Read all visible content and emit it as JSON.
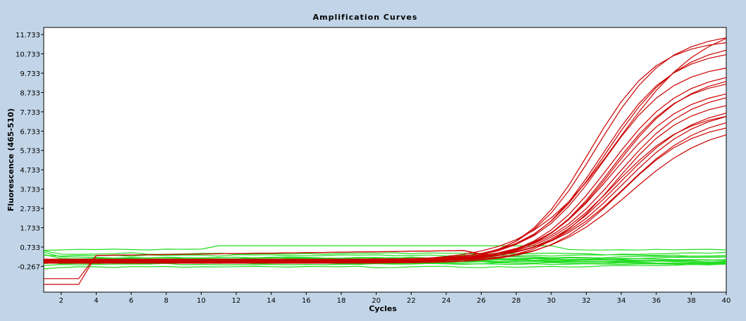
{
  "chart_data": {
    "type": "line",
    "title": "Amplification Curves",
    "xlabel": "Cycles",
    "ylabel": "Fluorescence (465-510)",
    "xlim": [
      1,
      40
    ],
    "ylim": [
      -1.6,
      12.1
    ],
    "x_ticks": [
      2,
      4,
      6,
      8,
      10,
      12,
      14,
      16,
      18,
      20,
      22,
      24,
      26,
      28,
      30,
      32,
      34,
      36,
      38,
      40
    ],
    "y_ticks": [
      -0.267,
      0.733,
      1.733,
      2.733,
      3.733,
      4.733,
      5.733,
      6.733,
      7.733,
      8.733,
      9.733,
      10.733,
      11.733
    ],
    "y_tick_labels": [
      "-0.267",
      "0.733",
      "1.733",
      "2.733",
      "3.733",
      "4.733",
      "5.733",
      "6.733",
      "7.733",
      "8.733",
      "9.733",
      "10.733",
      "11.733"
    ],
    "grid": false,
    "colors": {
      "positive": "#cc0000",
      "negative": "#22dd22"
    },
    "x": [
      1,
      2,
      3,
      4,
      5,
      6,
      7,
      8,
      9,
      10,
      11,
      12,
      13,
      14,
      15,
      16,
      17,
      18,
      19,
      20,
      21,
      22,
      23,
      24,
      25,
      26,
      27,
      28,
      29,
      30,
      31,
      32,
      33,
      34,
      35,
      36,
      37,
      38,
      39,
      40
    ],
    "positive_curves": [
      {
        "plateau": 11.6,
        "midpoint": 32.2,
        "slope": 1.9
      },
      {
        "plateau": 11.9,
        "midpoint": 32.6,
        "slope": 2.0
      },
      {
        "plateau": 11.0,
        "midpoint": 32.9,
        "slope": 2.0
      },
      {
        "plateau": 11.3,
        "midpoint": 33.2,
        "slope": 2.1
      },
      {
        "plateau": 10.2,
        "midpoint": 33.0,
        "slope": 2.0
      },
      {
        "plateau": 10.0,
        "midpoint": 33.3,
        "slope": 2.1
      },
      {
        "plateau": 9.8,
        "midpoint": 33.6,
        "slope": 2.1
      },
      {
        "plateau": 9.5,
        "midpoint": 33.4,
        "slope": 2.0
      },
      {
        "plateau": 9.0,
        "midpoint": 33.5,
        "slope": 2.1
      },
      {
        "plateau": 8.8,
        "midpoint": 33.8,
        "slope": 2.1
      },
      {
        "plateau": 8.5,
        "midpoint": 33.7,
        "slope": 2.0
      },
      {
        "plateau": 8.2,
        "midpoint": 33.9,
        "slope": 2.2
      },
      {
        "plateau": 8.0,
        "midpoint": 34.1,
        "slope": 2.2
      },
      {
        "plateau": 7.8,
        "midpoint": 33.6,
        "slope": 2.1
      },
      {
        "plateau": 7.6,
        "midpoint": 34.3,
        "slope": 2.2
      },
      {
        "plateau": 7.4,
        "midpoint": 34.0,
        "slope": 2.1
      },
      {
        "plateau": 7.2,
        "midpoint": 34.5,
        "slope": 2.3
      },
      {
        "plateau": 12.5,
        "midpoint": 33.8,
        "slope": 2.5
      }
    ],
    "negative_baselines": [
      0.0,
      0.05,
      -0.05,
      0.1,
      -0.1,
      0.15,
      0.2,
      -0.15,
      0.3,
      0.4,
      0.6,
      -0.3,
      0.02,
      -0.02,
      0.08,
      0.12
    ]
  }
}
